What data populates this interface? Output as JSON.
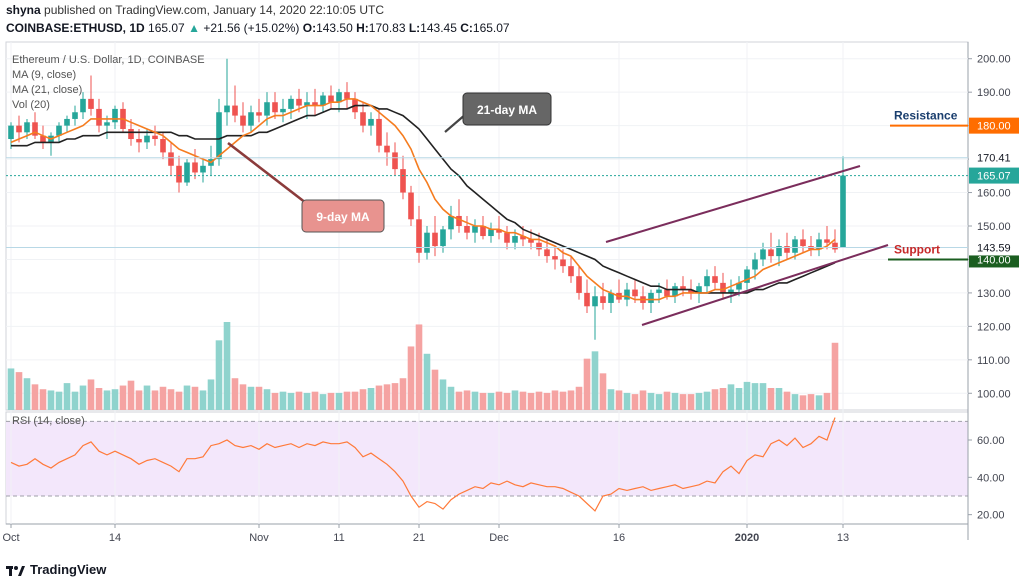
{
  "header": {
    "author": "shyna",
    "published_text": "published on TradingView.com, January 14, 2020 22:10:05 UTC",
    "symbol": "COINBASE:ETHUSD, 1D",
    "last": "165.07",
    "change": "+21.56 (+15.02%)",
    "open_label": "O:",
    "open": "143.50",
    "high_label": "H:",
    "high": "170.83",
    "low_label": "L:",
    "low": "143.45",
    "close_label": "C:",
    "close": "165.07"
  },
  "legend": {
    "title": "Ethereum / U.S. Dollar, 1D, COINBASE",
    "ma9": "MA (9, close)",
    "ma21": "MA (21, close)",
    "vol": "Vol (20)",
    "rsi": "RSI (14, close)"
  },
  "annotations": {
    "ma21_label": "21-day MA",
    "ma9_label": "9-day MA",
    "resistance": "Resistance",
    "support": "Support"
  },
  "footer": {
    "brand": "TradingView"
  },
  "colors": {
    "up": "#26a69a",
    "down": "#ef5350",
    "up_vol": "#8fd3cd",
    "down_vol": "#f5a3a2",
    "ma9": "#f57c1f",
    "ma21": "#222222",
    "channel": "#7b2d5c",
    "resistance": "#ff6d00",
    "support": "#1b5e20",
    "rsi_bg": "#f3e7fb",
    "rsi_line": "#ff7a3a",
    "ma21_box": "#666666",
    "ma9_box": "#e8938f"
  },
  "chart_data": {
    "type": "candlestick",
    "title": "Ethereum / U.S. Dollar, 1D, COINBASE",
    "price_axis": {
      "ticks": [
        "200.00",
        "190.00",
        "180.00",
        "170.00",
        "160.00",
        "150.00",
        "140.00",
        "130.00",
        "120.00",
        "110.00",
        "100.00"
      ],
      "min": 95,
      "max": 205,
      "current_price": "165.07",
      "mark_170": "170.41",
      "mark_143": "143.59",
      "resistance_level": "180.00",
      "support_level": "140.00"
    },
    "rsi_axis": {
      "ticks": [
        "60.00",
        "40.00",
        "20.00"
      ],
      "min": 15,
      "max": 75,
      "upper": 70,
      "lower": 30
    },
    "x_labels": [
      {
        "label": "Oct",
        "i": 0
      },
      {
        "label": "14",
        "i": 13
      },
      {
        "label": "Nov",
        "i": 31
      },
      {
        "label": "11",
        "i": 41
      },
      {
        "label": "21",
        "i": 51
      },
      {
        "label": "Dec",
        "i": 61
      },
      {
        "label": "16",
        "i": 76
      },
      {
        "label": "2020",
        "i": 92
      },
      {
        "label": "13",
        "i": 104
      }
    ],
    "ohlc": [
      [
        176,
        181,
        173,
        180
      ],
      [
        180,
        183,
        175,
        178
      ],
      [
        178,
        182,
        176,
        181
      ],
      [
        181,
        184,
        176,
        177
      ],
      [
        177,
        180,
        173,
        175
      ],
      [
        175,
        178,
        171,
        177
      ],
      [
        177,
        181,
        175,
        180
      ],
      [
        180,
        183,
        178,
        182
      ],
      [
        182,
        186,
        180,
        184
      ],
      [
        184,
        190,
        182,
        188
      ],
      [
        188,
        195,
        183,
        185
      ],
      [
        185,
        188,
        178,
        180
      ],
      [
        180,
        183,
        176,
        181
      ],
      [
        181,
        186,
        179,
        185
      ],
      [
        185,
        187,
        178,
        179
      ],
      [
        179,
        182,
        174,
        176
      ],
      [
        176,
        179,
        172,
        175
      ],
      [
        175,
        179,
        173,
        177
      ],
      [
        177,
        180,
        174,
        176
      ],
      [
        176,
        178,
        170,
        172
      ],
      [
        172,
        175,
        165,
        168
      ],
      [
        168,
        171,
        160,
        163
      ],
      [
        163,
        170,
        162,
        169
      ],
      [
        169,
        173,
        164,
        166
      ],
      [
        166,
        170,
        163,
        168
      ],
      [
        168,
        174,
        165,
        170
      ],
      [
        170,
        188,
        168,
        184
      ],
      [
        184,
        200,
        180,
        186
      ],
      [
        186,
        192,
        181,
        183
      ],
      [
        183,
        187,
        178,
        180
      ],
      [
        180,
        186,
        178,
        184
      ],
      [
        184,
        188,
        181,
        183
      ],
      [
        183,
        190,
        180,
        187
      ],
      [
        187,
        190,
        182,
        184
      ],
      [
        184,
        188,
        181,
        185
      ],
      [
        185,
        189,
        182,
        188
      ],
      [
        188,
        191,
        184,
        186
      ],
      [
        186,
        190,
        182,
        187
      ],
      [
        187,
        191,
        183,
        186
      ],
      [
        186,
        190,
        184,
        189
      ],
      [
        189,
        192,
        185,
        187
      ],
      [
        187,
        191,
        184,
        190
      ],
      [
        190,
        193,
        185,
        188
      ],
      [
        188,
        190,
        182,
        184
      ],
      [
        184,
        187,
        178,
        180
      ],
      [
        180,
        184,
        177,
        182
      ],
      [
        182,
        185,
        172,
        174
      ],
      [
        174,
        178,
        168,
        172
      ],
      [
        172,
        175,
        165,
        167
      ],
      [
        167,
        171,
        158,
        160
      ],
      [
        160,
        162,
        150,
        152
      ],
      [
        152,
        156,
        139,
        142
      ],
      [
        142,
        150,
        140,
        148
      ],
      [
        148,
        153,
        141,
        144
      ],
      [
        144,
        150,
        142,
        149
      ],
      [
        149,
        156,
        146,
        153
      ],
      [
        153,
        158,
        148,
        150
      ],
      [
        150,
        153,
        146,
        148
      ],
      [
        148,
        152,
        145,
        150
      ],
      [
        150,
        153,
        146,
        147
      ],
      [
        147,
        151,
        145,
        149
      ],
      [
        149,
        153,
        146,
        148
      ],
      [
        148,
        150,
        143,
        145
      ],
      [
        145,
        149,
        143,
        147
      ],
      [
        147,
        150,
        144,
        146
      ],
      [
        146,
        149,
        143,
        145
      ],
      [
        145,
        148,
        141,
        143
      ],
      [
        143,
        146,
        139,
        141
      ],
      [
        141,
        144,
        137,
        140
      ],
      [
        140,
        143,
        136,
        138
      ],
      [
        138,
        141,
        133,
        135
      ],
      [
        135,
        138,
        128,
        130
      ],
      [
        130,
        134,
        124,
        126
      ],
      [
        126,
        132,
        116,
        129
      ],
      [
        129,
        133,
        125,
        127
      ],
      [
        127,
        131,
        124,
        130
      ],
      [
        130,
        134,
        127,
        128
      ],
      [
        128,
        133,
        126,
        131
      ],
      [
        131,
        134,
        127,
        129
      ],
      [
        129,
        132,
        125,
        127
      ],
      [
        127,
        131,
        124,
        130
      ],
      [
        130,
        133,
        127,
        131
      ],
      [
        131,
        134,
        128,
        129
      ],
      [
        129,
        133,
        127,
        132
      ],
      [
        132,
        135,
        129,
        131
      ],
      [
        131,
        134,
        128,
        130
      ],
      [
        130,
        133,
        127,
        132
      ],
      [
        132,
        137,
        130,
        135
      ],
      [
        135,
        138,
        131,
        133
      ],
      [
        133,
        136,
        128,
        130
      ],
      [
        130,
        134,
        127,
        131
      ],
      [
        131,
        135,
        129,
        133
      ],
      [
        133,
        138,
        131,
        137
      ],
      [
        137,
        142,
        134,
        140
      ],
      [
        140,
        145,
        138,
        143
      ],
      [
        143,
        148,
        139,
        141
      ],
      [
        141,
        146,
        138,
        144
      ],
      [
        144,
        148,
        140,
        142
      ],
      [
        142,
        147,
        140,
        146
      ],
      [
        146,
        149,
        142,
        144
      ],
      [
        144,
        147,
        141,
        143
      ],
      [
        143,
        148,
        141,
        146
      ],
      [
        146,
        150,
        143,
        145
      ],
      [
        145,
        149,
        142,
        143
      ],
      [
        143.5,
        170.83,
        143.45,
        165.07
      ]
    ],
    "volume": [
      34,
      31,
      26,
      21,
      17,
      16,
      15,
      22,
      15,
      20,
      25,
      18,
      16,
      17,
      20,
      24,
      16,
      20,
      16,
      19,
      17,
      15,
      20,
      19,
      16,
      25,
      57,
      72,
      26,
      21,
      19,
      19,
      17,
      14,
      15,
      14,
      15,
      14,
      15,
      13,
      14,
      14,
      15,
      15,
      17,
      18,
      20,
      21,
      22,
      26,
      52,
      70,
      46,
      33,
      25,
      19,
      15,
      16,
      15,
      14,
      14,
      15,
      14,
      16,
      15,
      14,
      15,
      14,
      16,
      15,
      16,
      19,
      42,
      48,
      30,
      17,
      16,
      14,
      13,
      16,
      14,
      13,
      15,
      14,
      13,
      13,
      14,
      15,
      17,
      18,
      21,
      18,
      23,
      22,
      22,
      18,
      18,
      15,
      13,
      12,
      13,
      12,
      14,
      55
    ],
    "rsi": [
      48,
      46,
      47,
      50,
      47,
      45,
      48,
      50,
      52,
      57,
      59,
      54,
      52,
      54,
      52,
      50,
      47,
      49,
      50,
      48,
      46,
      43,
      50,
      50,
      51,
      57,
      58,
      60,
      57,
      56,
      57,
      55,
      58,
      56,
      57,
      58,
      56,
      58,
      57,
      59,
      58,
      58,
      59,
      56,
      51,
      53,
      50,
      47,
      43,
      38,
      30,
      24,
      27,
      26,
      23,
      28,
      31,
      33,
      35,
      34,
      37,
      36,
      38,
      36,
      35,
      37,
      36,
      35,
      35,
      34,
      32,
      30,
      26,
      22,
      30,
      31,
      34,
      33,
      34,
      35,
      33,
      34,
      35,
      36,
      34,
      35,
      36,
      38,
      37,
      43,
      46,
      42,
      49,
      52,
      51,
      58,
      60,
      57,
      61,
      56,
      58,
      62,
      60,
      72
    ],
    "ma9": [
      175,
      176,
      177,
      178,
      177,
      176,
      177,
      178,
      179,
      180,
      182,
      182,
      182,
      182,
      182,
      181,
      180,
      179,
      178,
      177,
      175,
      173,
      172,
      171,
      170,
      169,
      171,
      173,
      175,
      177,
      178,
      180,
      182,
      183,
      183,
      184,
      185,
      186,
      186,
      186,
      187,
      187,
      188,
      188,
      187,
      186,
      184,
      182,
      180,
      177,
      173,
      167,
      163,
      158,
      155,
      153,
      152,
      151,
      150,
      150,
      149,
      149,
      148,
      148,
      147,
      146,
      146,
      145,
      144,
      142,
      141,
      138,
      135,
      133,
      131,
      130,
      129,
      129,
      128,
      128,
      128,
      128,
      129,
      129,
      130,
      130,
      130,
      130,
      131,
      131,
      132,
      133,
      134,
      135,
      137,
      138,
      139,
      140,
      141,
      142,
      143,
      143,
      144,
      146
    ],
    "ma21": [
      174,
      174,
      174,
      175,
      175,
      175,
      175,
      176,
      176,
      177,
      177,
      177,
      178,
      178,
      178,
      178,
      178,
      178,
      178,
      178,
      178,
      177,
      177,
      176,
      176,
      176,
      176,
      177,
      177,
      177,
      177,
      178,
      178,
      179,
      180,
      181,
      182,
      183,
      183,
      184,
      185,
      185,
      185,
      186,
      186,
      186,
      185,
      185,
      184,
      183,
      181,
      179,
      176,
      173,
      170,
      167,
      165,
      162,
      160,
      158,
      156,
      154,
      152,
      151,
      149,
      148,
      147,
      146,
      145,
      144,
      143,
      142,
      141,
      140,
      138,
      137,
      136,
      135,
      134,
      133,
      132,
      132,
      131,
      131,
      131,
      131,
      130,
      130,
      130,
      130,
      130,
      130,
      130,
      131,
      131,
      132,
      133,
      133,
      134,
      135,
      136,
      137,
      138,
      139
    ]
  }
}
